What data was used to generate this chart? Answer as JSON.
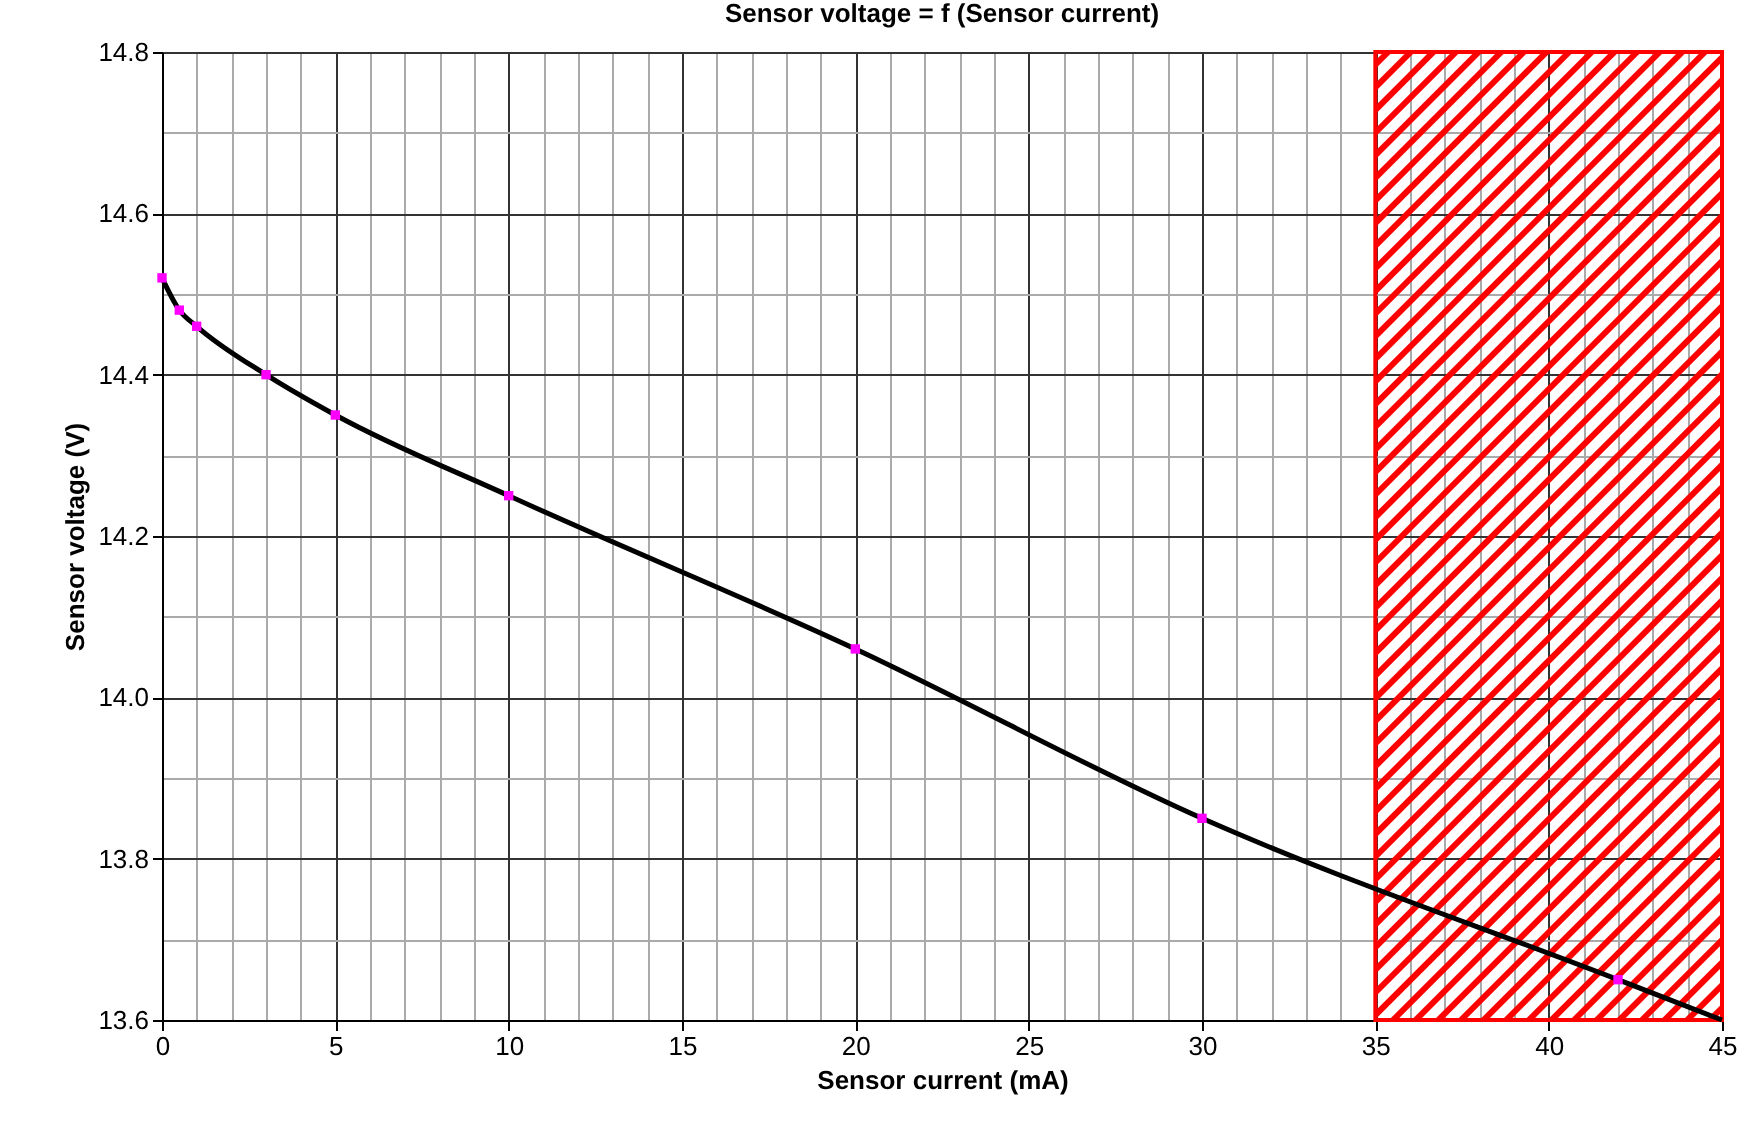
{
  "chart_data": {
    "type": "line",
    "title": "Sensor voltage = f (Sensor current)",
    "xlabel": "Sensor current (mA)",
    "ylabel": "Sensor voltage (V)",
    "series": [
      {
        "type": "line",
        "color": "#000000",
        "marker": "none",
        "x": [
          0,
          0.5,
          1,
          3,
          5,
          10,
          20,
          30,
          42,
          45
        ],
        "values": [
          14.52,
          14.48,
          14.46,
          14.4,
          14.35,
          14.25,
          14.06,
          13.85,
          13.65,
          13.6
        ]
      },
      {
        "type": "scatter",
        "color": "#ff00ff",
        "marker": "square",
        "x": [
          0,
          0.5,
          1,
          3,
          5,
          10,
          20,
          30,
          42
        ],
        "values": [
          14.52,
          14.48,
          14.46,
          14.4,
          14.35,
          14.25,
          14.06,
          13.85,
          13.65
        ]
      }
    ],
    "xlim": [
      0,
      45
    ],
    "xticks": [
      0,
      5,
      10,
      15,
      20,
      25,
      30,
      35,
      40,
      45
    ],
    "ylim": [
      13.6,
      14.8
    ],
    "yticks": [
      13.6,
      13.8,
      {
        "value": 14,
        "label": "14.0"
      },
      14.2,
      14.4,
      14.6,
      14.8
    ],
    "grid": true,
    "bands": [
      {
        "axis": "x",
        "from": 35,
        "to": 45,
        "color": "#ff0000"
      }
    ]
  }
}
